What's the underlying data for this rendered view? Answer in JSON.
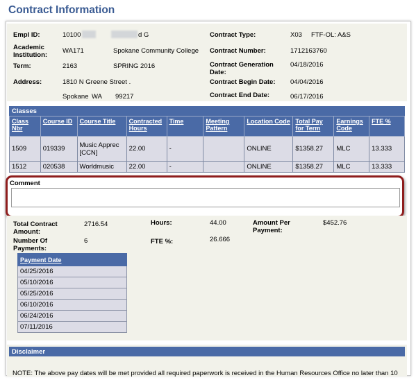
{
  "page_title": "Contract Information",
  "contract": {
    "empl_id": {
      "label": "Empl ID:",
      "value_prefix": "10100",
      "value_suffix": "d G"
    },
    "academic_institution": {
      "label": "Academic Institution:",
      "code": "WA171",
      "name": "Spokane Community College"
    },
    "term": {
      "label": "Term:",
      "code": "2163",
      "name": "SPRING 2016"
    },
    "address": {
      "label": "Address:",
      "line1": "1810 N Greene Street .",
      "city": "Spokane",
      "state": "WA",
      "zip": "99217"
    },
    "contract_type": {
      "label": "Contract Type:",
      "code": "X03",
      "description": "FTF-OL: A&S"
    },
    "contract_number": {
      "label": "Contract Number:",
      "value": "1712163760"
    },
    "contract_generation_date": {
      "label": "Contract Generation Date:",
      "value": "04/18/2016"
    },
    "contract_begin_date": {
      "label": "Contract Begin Date:",
      "value": "04/04/2016"
    },
    "contract_end_date": {
      "label": "Contract End Date:",
      "value": "06/17/2016"
    }
  },
  "classes": {
    "title": "Classes",
    "columns": [
      "Class Nbr",
      "Course ID",
      "Course Title",
      "Contracted Hours",
      "Time",
      "Meeting Pattern",
      "Location Code",
      "Total Pay for Term",
      "Earnings Code",
      "FTE %"
    ],
    "rows": [
      [
        "1509",
        "019339",
        "Music Apprec [CCN]",
        "22.00",
        "-",
        "",
        "ONLINE",
        "$1358.27",
        "MLC",
        "13.333"
      ],
      [
        "1512",
        "020538",
        "Worldmusic",
        "22.00",
        "-",
        "",
        "ONLINE",
        "$1358.27",
        "MLC",
        "13.333"
      ]
    ]
  },
  "comment": {
    "label": "Comment",
    "value": ""
  },
  "totals": {
    "total_contract_amount": {
      "label": "Total Contract Amount:",
      "value": "2716.54"
    },
    "number_of_payments": {
      "label": "Number Of Payments:",
      "value": "6"
    },
    "hours": {
      "label": "Hours:",
      "value": "44.00"
    },
    "fte_pct": {
      "label": "FTE %:",
      "value": "26.666"
    },
    "amount_per_payment": {
      "label": "Amount Per Payment:",
      "value": "$452.76"
    }
  },
  "payments": {
    "header": "Payment Date",
    "dates": [
      "04/25/2016",
      "05/10/2016",
      "05/25/2016",
      "06/10/2016",
      "06/24/2016",
      "07/11/2016"
    ]
  },
  "disclaimer": {
    "title": "Disclaimer",
    "text": "NOTE: The above pay dates will be met provided all required paperwork is received in the Human Resources Office no later than 10"
  },
  "colors": {
    "header_blue": "#4a6aa6",
    "title_blue": "#3a5b93",
    "panel_bg": "#f2f2ea",
    "highlight_red": "#8e1d1d"
  }
}
